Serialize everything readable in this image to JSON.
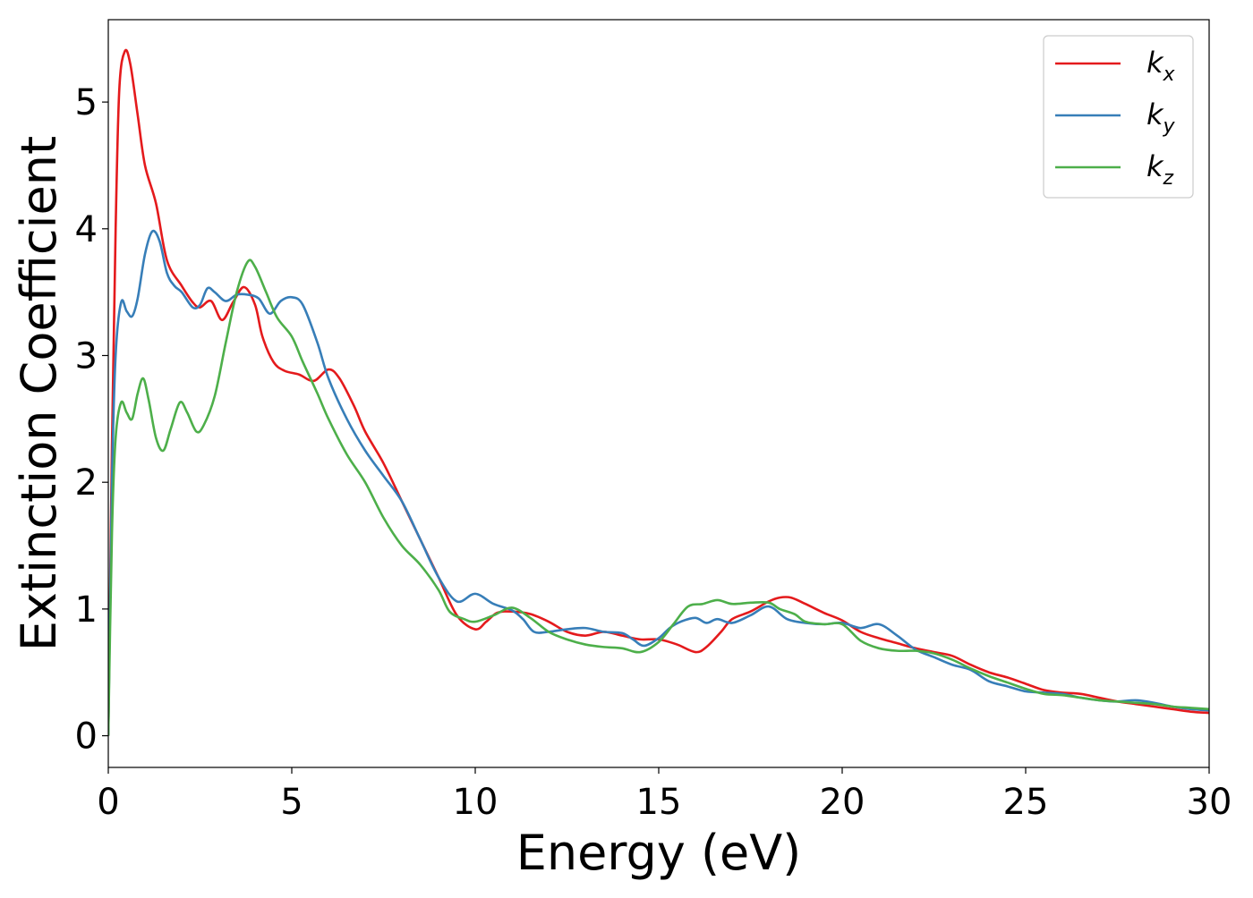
{
  "chart_data": {
    "type": "line",
    "title": "",
    "xlabel": "Energy (eV)",
    "ylabel": "Extinction Coefficient",
    "xlim": [
      0,
      30
    ],
    "ylim": [
      -0.25,
      5.65
    ],
    "xticks": [
      "0",
      "5",
      "10",
      "15",
      "20",
      "25",
      "30"
    ],
    "yticks": [
      "0",
      "1",
      "2",
      "3",
      "4",
      "5"
    ],
    "grid": false,
    "legend_position": "top-right",
    "series": [
      {
        "name": "k",
        "subscript": "x",
        "color": "#e41a1c",
        "points": [
          [
            0,
            0
          ],
          [
            0.1,
            2.3
          ],
          [
            0.2,
            4.0
          ],
          [
            0.3,
            5.1
          ],
          [
            0.45,
            5.4
          ],
          [
            0.6,
            5.3
          ],
          [
            0.8,
            4.9
          ],
          [
            1.0,
            4.5
          ],
          [
            1.3,
            4.2
          ],
          [
            1.6,
            3.75
          ],
          [
            2.0,
            3.55
          ],
          [
            2.3,
            3.42
          ],
          [
            2.5,
            3.38
          ],
          [
            2.8,
            3.43
          ],
          [
            3.1,
            3.28
          ],
          [
            3.4,
            3.42
          ],
          [
            3.7,
            3.54
          ],
          [
            4.0,
            3.4
          ],
          [
            4.2,
            3.15
          ],
          [
            4.5,
            2.95
          ],
          [
            4.8,
            2.88
          ],
          [
            5.2,
            2.85
          ],
          [
            5.6,
            2.8
          ],
          [
            6.0,
            2.89
          ],
          [
            6.3,
            2.82
          ],
          [
            6.7,
            2.6
          ],
          [
            7.0,
            2.4
          ],
          [
            7.5,
            2.15
          ],
          [
            8.0,
            1.85
          ],
          [
            8.5,
            1.55
          ],
          [
            9.0,
            1.25
          ],
          [
            9.5,
            0.95
          ],
          [
            10.0,
            0.84
          ],
          [
            10.3,
            0.9
          ],
          [
            10.6,
            0.97
          ],
          [
            11.0,
            0.98
          ],
          [
            11.5,
            0.96
          ],
          [
            12.0,
            0.9
          ],
          [
            12.5,
            0.82
          ],
          [
            13.0,
            0.79
          ],
          [
            13.5,
            0.82
          ],
          [
            14.0,
            0.79
          ],
          [
            14.5,
            0.76
          ],
          [
            15.0,
            0.76
          ],
          [
            15.5,
            0.72
          ],
          [
            16.0,
            0.66
          ],
          [
            16.3,
            0.7
          ],
          [
            16.7,
            0.82
          ],
          [
            17.0,
            0.92
          ],
          [
            17.5,
            0.98
          ],
          [
            18.0,
            1.06
          ],
          [
            18.3,
            1.09
          ],
          [
            18.6,
            1.09
          ],
          [
            19.0,
            1.04
          ],
          [
            19.5,
            0.97
          ],
          [
            20.0,
            0.91
          ],
          [
            20.5,
            0.82
          ],
          [
            21.0,
            0.77
          ],
          [
            21.5,
            0.73
          ],
          [
            22.0,
            0.69
          ],
          [
            22.5,
            0.66
          ],
          [
            23.0,
            0.63
          ],
          [
            23.5,
            0.56
          ],
          [
            24.0,
            0.5
          ],
          [
            24.5,
            0.46
          ],
          [
            25.0,
            0.41
          ],
          [
            25.5,
            0.36
          ],
          [
            26.0,
            0.34
          ],
          [
            26.5,
            0.33
          ],
          [
            27.0,
            0.3
          ],
          [
            27.5,
            0.27
          ],
          [
            28.0,
            0.25
          ],
          [
            28.5,
            0.23
          ],
          [
            29.0,
            0.21
          ],
          [
            29.5,
            0.19
          ],
          [
            30.0,
            0.18
          ]
        ]
      },
      {
        "name": "k",
        "subscript": "y",
        "color": "#377eb8",
        "points": [
          [
            0,
            0
          ],
          [
            0.1,
            2.0
          ],
          [
            0.2,
            3.0
          ],
          [
            0.35,
            3.42
          ],
          [
            0.5,
            3.35
          ],
          [
            0.65,
            3.31
          ],
          [
            0.8,
            3.45
          ],
          [
            1.0,
            3.8
          ],
          [
            1.2,
            3.98
          ],
          [
            1.4,
            3.9
          ],
          [
            1.6,
            3.65
          ],
          [
            1.8,
            3.55
          ],
          [
            2.0,
            3.5
          ],
          [
            2.3,
            3.38
          ],
          [
            2.5,
            3.4
          ],
          [
            2.7,
            3.53
          ],
          [
            2.9,
            3.5
          ],
          [
            3.2,
            3.43
          ],
          [
            3.5,
            3.48
          ],
          [
            3.8,
            3.48
          ],
          [
            4.1,
            3.45
          ],
          [
            4.4,
            3.33
          ],
          [
            4.7,
            3.43
          ],
          [
            5.0,
            3.46
          ],
          [
            5.3,
            3.4
          ],
          [
            5.7,
            3.1
          ],
          [
            6.0,
            2.82
          ],
          [
            6.5,
            2.5
          ],
          [
            7.0,
            2.25
          ],
          [
            7.5,
            2.05
          ],
          [
            8.0,
            1.85
          ],
          [
            8.5,
            1.55
          ],
          [
            9.0,
            1.25
          ],
          [
            9.5,
            1.06
          ],
          [
            10.0,
            1.12
          ],
          [
            10.5,
            1.04
          ],
          [
            11.0,
            0.99
          ],
          [
            11.3,
            0.92
          ],
          [
            11.6,
            0.82
          ],
          [
            12.0,
            0.82
          ],
          [
            12.5,
            0.84
          ],
          [
            13.0,
            0.85
          ],
          [
            13.5,
            0.82
          ],
          [
            14.0,
            0.81
          ],
          [
            14.3,
            0.76
          ],
          [
            14.6,
            0.71
          ],
          [
            15.0,
            0.77
          ],
          [
            15.3,
            0.85
          ],
          [
            15.6,
            0.9
          ],
          [
            16.0,
            0.93
          ],
          [
            16.3,
            0.89
          ],
          [
            16.6,
            0.92
          ],
          [
            17.0,
            0.89
          ],
          [
            17.5,
            0.95
          ],
          [
            18.0,
            1.02
          ],
          [
            18.5,
            0.92
          ],
          [
            19.0,
            0.89
          ],
          [
            19.5,
            0.88
          ],
          [
            20.0,
            0.89
          ],
          [
            20.5,
            0.85
          ],
          [
            21.0,
            0.88
          ],
          [
            21.5,
            0.79
          ],
          [
            22.0,
            0.68
          ],
          [
            22.5,
            0.62
          ],
          [
            23.0,
            0.56
          ],
          [
            23.5,
            0.52
          ],
          [
            24.0,
            0.43
          ],
          [
            24.5,
            0.39
          ],
          [
            25.0,
            0.35
          ],
          [
            25.5,
            0.34
          ],
          [
            26.0,
            0.33
          ],
          [
            26.5,
            0.3
          ],
          [
            27.0,
            0.28
          ],
          [
            27.5,
            0.27
          ],
          [
            28.0,
            0.28
          ],
          [
            28.5,
            0.26
          ],
          [
            29.0,
            0.23
          ],
          [
            29.5,
            0.21
          ],
          [
            30.0,
            0.2
          ]
        ]
      },
      {
        "name": "k",
        "subscript": "z",
        "color": "#4daf4a",
        "points": [
          [
            0,
            0
          ],
          [
            0.1,
            1.6
          ],
          [
            0.2,
            2.35
          ],
          [
            0.35,
            2.63
          ],
          [
            0.5,
            2.55
          ],
          [
            0.65,
            2.5
          ],
          [
            0.8,
            2.7
          ],
          [
            0.95,
            2.82
          ],
          [
            1.1,
            2.65
          ],
          [
            1.3,
            2.35
          ],
          [
            1.5,
            2.25
          ],
          [
            1.7,
            2.42
          ],
          [
            1.95,
            2.63
          ],
          [
            2.15,
            2.55
          ],
          [
            2.4,
            2.4
          ],
          [
            2.6,
            2.45
          ],
          [
            2.9,
            2.68
          ],
          [
            3.2,
            3.1
          ],
          [
            3.5,
            3.5
          ],
          [
            3.8,
            3.74
          ],
          [
            4.0,
            3.7
          ],
          [
            4.3,
            3.5
          ],
          [
            4.6,
            3.3
          ],
          [
            5.0,
            3.15
          ],
          [
            5.3,
            2.95
          ],
          [
            5.7,
            2.7
          ],
          [
            6.0,
            2.5
          ],
          [
            6.5,
            2.22
          ],
          [
            7.0,
            2.0
          ],
          [
            7.5,
            1.72
          ],
          [
            8.0,
            1.5
          ],
          [
            8.5,
            1.35
          ],
          [
            9.0,
            1.15
          ],
          [
            9.3,
            0.98
          ],
          [
            9.7,
            0.92
          ],
          [
            10.0,
            0.9
          ],
          [
            10.5,
            0.95
          ],
          [
            11.0,
            1.01
          ],
          [
            11.5,
            0.93
          ],
          [
            12.0,
            0.82
          ],
          [
            12.5,
            0.76
          ],
          [
            13.0,
            0.72
          ],
          [
            13.5,
            0.7
          ],
          [
            14.0,
            0.69
          ],
          [
            14.5,
            0.66
          ],
          [
            15.0,
            0.74
          ],
          [
            15.4,
            0.88
          ],
          [
            15.8,
            1.02
          ],
          [
            16.2,
            1.04
          ],
          [
            16.6,
            1.07
          ],
          [
            17.0,
            1.04
          ],
          [
            17.5,
            1.05
          ],
          [
            18.0,
            1.05
          ],
          [
            18.3,
            1.0
          ],
          [
            18.7,
            0.96
          ],
          [
            19.0,
            0.9
          ],
          [
            19.5,
            0.88
          ],
          [
            20.0,
            0.88
          ],
          [
            20.5,
            0.75
          ],
          [
            21.0,
            0.69
          ],
          [
            21.5,
            0.67
          ],
          [
            22.0,
            0.67
          ],
          [
            22.5,
            0.65
          ],
          [
            23.0,
            0.6
          ],
          [
            23.5,
            0.53
          ],
          [
            24.0,
            0.47
          ],
          [
            24.5,
            0.42
          ],
          [
            25.0,
            0.37
          ],
          [
            25.5,
            0.33
          ],
          [
            26.0,
            0.32
          ],
          [
            26.5,
            0.3
          ],
          [
            27.0,
            0.28
          ],
          [
            27.5,
            0.27
          ],
          [
            28.0,
            0.26
          ],
          [
            28.5,
            0.25
          ],
          [
            29.0,
            0.23
          ],
          [
            29.5,
            0.22
          ],
          [
            30.0,
            0.21
          ]
        ]
      }
    ]
  }
}
